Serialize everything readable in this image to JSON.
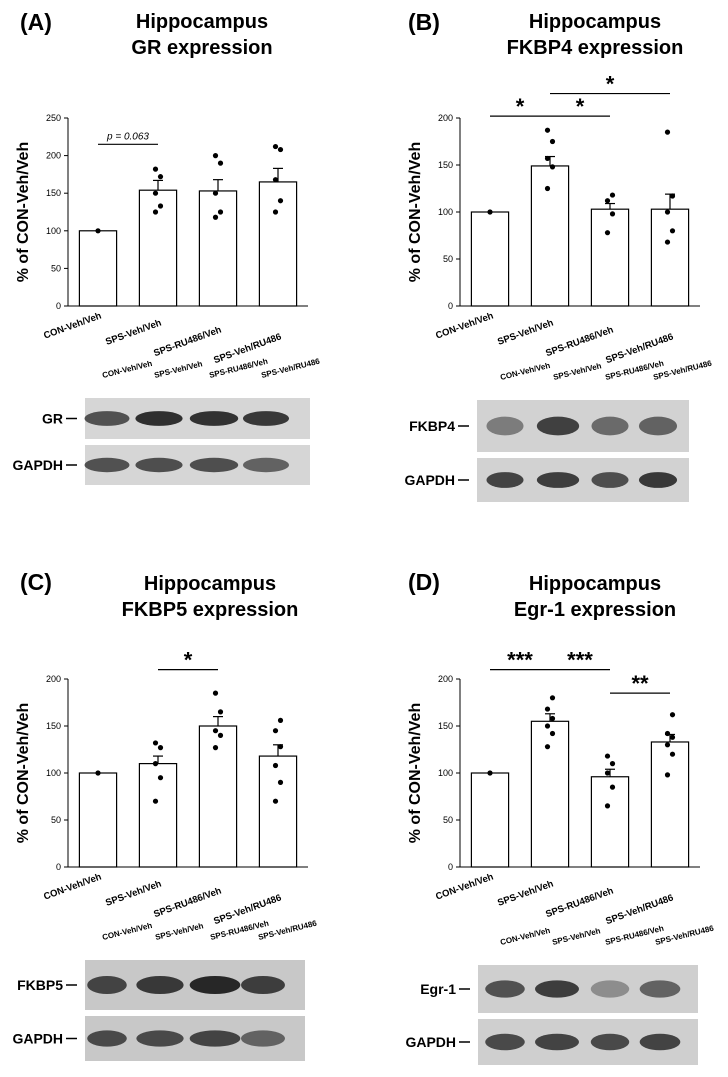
{
  "chart_data": [
    {
      "type": "bar",
      "panel_label": "(A)",
      "title": [
        "Hippocampus",
        "GR expression"
      ],
      "ylabel": "% of CON-Veh/Veh",
      "ylim": [
        0,
        250
      ],
      "yticks": [
        0,
        50,
        100,
        150,
        200,
        250
      ],
      "categories": [
        "CON-Veh/Veh",
        "SPS-Veh/Veh",
        "SPS-RU486/Veh",
        "SPS-Veh/RU486"
      ],
      "values": [
        100,
        154,
        153,
        165
      ],
      "errors": [
        0,
        13,
        15,
        18
      ],
      "points": [
        [
          100
        ],
        [
          125,
          133,
          150,
          172,
          182
        ],
        [
          118,
          125,
          150,
          190,
          200
        ],
        [
          125,
          140,
          168,
          208,
          212
        ]
      ],
      "annotations": [
        {
          "from": 0,
          "to": 1,
          "text": "p = 0.063",
          "y": 215
        }
      ],
      "blot": {
        "labels": [
          "CON-Veh/Veh",
          "SPS-Veh/Veh",
          "SPS-RU486/Veh",
          "SPS-Veh/RU486"
        ],
        "rows": [
          "GR",
          "GAPDH"
        ]
      }
    },
    {
      "type": "bar",
      "panel_label": "(B)",
      "title": [
        "Hippocampus",
        "FKBP4 expression"
      ],
      "ylabel": "% of CON-Veh/Veh",
      "ylim": [
        0,
        200
      ],
      "yticks": [
        0,
        50,
        100,
        150,
        200
      ],
      "categories": [
        "CON-Veh/Veh",
        "SPS-Veh/Veh",
        "SPS-RU486/Veh",
        "SPS-Veh/RU486"
      ],
      "values": [
        100,
        149,
        103,
        103
      ],
      "errors": [
        0,
        10,
        6,
        16
      ],
      "points": [
        [
          100
        ],
        [
          125,
          148,
          157,
          175,
          187
        ],
        [
          78,
          98,
          112,
          118
        ],
        [
          68,
          80,
          100,
          117,
          185
        ]
      ],
      "annotations": [
        {
          "from": 0,
          "to": 1,
          "text": "*",
          "y": 202
        },
        {
          "from": 1,
          "to": 2,
          "text": "*",
          "y": 202
        },
        {
          "from": 1,
          "to": 3,
          "text": "*",
          "y": 226
        }
      ],
      "blot": {
        "labels": [
          "CON-Veh/Veh",
          "SPS-Veh/Veh",
          "SPS-RU486/Veh",
          "SPS-Veh/RU486"
        ],
        "rows": [
          "FKBP4",
          "GAPDH"
        ]
      }
    },
    {
      "type": "bar",
      "panel_label": "(C)",
      "title": [
        "Hippocampus",
        "FKBP5 expression"
      ],
      "ylabel": "% of CON-Veh/Veh",
      "ylim": [
        0,
        200
      ],
      "yticks": [
        0,
        50,
        100,
        150,
        200
      ],
      "categories": [
        "CON-Veh/Veh",
        "SPS-Veh/Veh",
        "SPS-RU486/Veh",
        "SPS-Veh/RU486"
      ],
      "values": [
        100,
        110,
        150,
        118
      ],
      "errors": [
        0,
        8,
        10,
        12
      ],
      "points": [
        [
          100
        ],
        [
          70,
          95,
          110,
          127,
          132
        ],
        [
          127,
          140,
          145,
          165,
          185
        ],
        [
          70,
          90,
          108,
          128,
          145,
          156
        ]
      ],
      "annotations": [
        {
          "from": 1,
          "to": 2,
          "text": "*",
          "y": 210
        }
      ],
      "blot": {
        "labels": [
          "CON-Veh/Veh",
          "SPS-Veh/Veh",
          "SPS-RU486/Veh",
          "SPS-Veh/RU486"
        ],
        "rows": [
          "FKBP5",
          "GAPDH"
        ]
      }
    },
    {
      "type": "bar",
      "panel_label": "(D)",
      "title": [
        "Hippocampus",
        "Egr-1 expression"
      ],
      "ylabel": "% of CON-Veh/Veh",
      "ylim": [
        0,
        200
      ],
      "yticks": [
        0,
        50,
        100,
        150,
        200
      ],
      "categories": [
        "CON-Veh/Veh",
        "SPS-Veh/Veh",
        "SPS-RU486/Veh",
        "SPS-Veh/RU486"
      ],
      "values": [
        100,
        155,
        96,
        133
      ],
      "errors": [
        0,
        8,
        8,
        8
      ],
      "points": [
        [
          100
        ],
        [
          128,
          142,
          150,
          158,
          168,
          180
        ],
        [
          65,
          85,
          100,
          110,
          118
        ],
        [
          98,
          120,
          130,
          138,
          142,
          162
        ]
      ],
      "annotations": [
        {
          "from": 0,
          "to": 1,
          "text": "***",
          "y": 210
        },
        {
          "from": 1,
          "to": 2,
          "text": "***",
          "y": 210
        },
        {
          "from": 2,
          "to": 3,
          "text": "**",
          "y": 185
        }
      ],
      "blot": {
        "labels": [
          "CON-Veh/Veh",
          "SPS-Veh/Veh",
          "SPS-RU486/Veh",
          "SPS-Veh/RU486"
        ],
        "rows": [
          "Egr-1",
          "GAPDH"
        ]
      }
    }
  ]
}
